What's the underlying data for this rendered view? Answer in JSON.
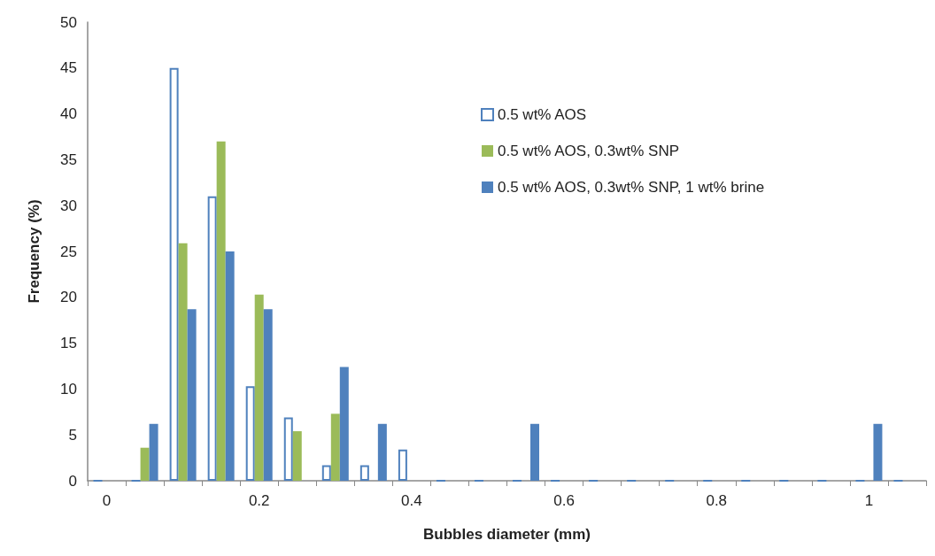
{
  "chart_data": {
    "type": "bar",
    "xlabel": "Bubbles diameter (mm)",
    "ylabel": "Frequency (%)",
    "categories": [
      "0",
      null,
      null,
      null,
      "0.2",
      null,
      null,
      null,
      "0.4",
      null,
      null,
      null,
      "0.6",
      null,
      null,
      null,
      "0.8",
      null,
      null,
      null,
      "1",
      null
    ],
    "series": [
      {
        "name": "0.5 wt% AOS",
        "color": "#4f81bd",
        "values": [
          0,
          0,
          45,
          31,
          10.3,
          6.9,
          1.7,
          1.7,
          3.4,
          0,
          0,
          0,
          0,
          0,
          0,
          0,
          0,
          0,
          0,
          0,
          0,
          0
        ]
      },
      {
        "name": "0.5 wt% AOS, 0.3wt% SNP",
        "color": "#9bbb59",
        "values": [
          0,
          3.6,
          25.9,
          37,
          20.3,
          5.4,
          7.3,
          0,
          0,
          0,
          0,
          0,
          0,
          0,
          0,
          0,
          0,
          0,
          0,
          0,
          0,
          0
        ]
      },
      {
        "name": "0.5 wt% AOS, 0.3wt% SNP, 1 wt% brine",
        "color": "#4f81bd",
        "values": [
          0,
          6.2,
          18.7,
          25,
          18.7,
          0,
          12.4,
          6.2,
          0,
          0,
          0,
          6.2,
          0,
          0,
          0,
          0,
          0,
          0,
          0,
          0,
          6.2,
          0
        ]
      }
    ],
    "ylim": [
      0,
      50
    ],
    "yticks": [
      0,
      5,
      10,
      15,
      20,
      25,
      30,
      35,
      40,
      45,
      50
    ],
    "grid": false,
    "legend": "top right"
  }
}
